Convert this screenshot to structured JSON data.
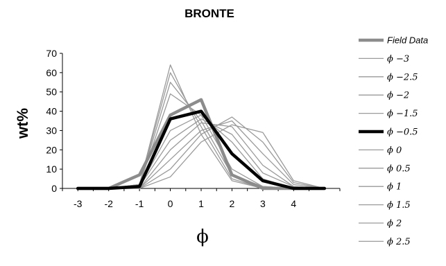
{
  "chart_data": {
    "type": "line",
    "title": "BRONTE",
    "xlabel": "ϕ",
    "ylabel": "wt%",
    "x": [
      -3,
      -2,
      -1,
      0,
      1,
      2,
      3,
      4,
      5
    ],
    "x_tick_labels": [
      "-3",
      "-2",
      "-1",
      "0",
      "1",
      "2",
      "3",
      "4"
    ],
    "y_tick_labels": [
      "0",
      "10",
      "20",
      "30",
      "40",
      "50",
      "60",
      "70"
    ],
    "ylim": [
      0,
      70
    ],
    "grid": false,
    "legend_position": "right",
    "series": [
      {
        "name": "Field Data",
        "color": "#8c8c8c",
        "style": "thick",
        "values": [
          0,
          0,
          7,
          38,
          46,
          7,
          0,
          0,
          0
        ]
      },
      {
        "name": "ϕ −3",
        "color": "#9a9a9a",
        "style": "thin",
        "values": [
          0,
          0,
          2,
          64,
          28,
          4,
          0,
          0,
          0
        ]
      },
      {
        "name": "ϕ −2.5",
        "color": "#9a9a9a",
        "style": "thin",
        "values": [
          0,
          0,
          2,
          60,
          32,
          5,
          0,
          0,
          0
        ]
      },
      {
        "name": "ϕ −2",
        "color": "#9a9a9a",
        "style": "thin",
        "values": [
          0,
          0,
          2,
          55,
          35,
          7,
          1,
          0,
          0
        ]
      },
      {
        "name": "ϕ −1.5",
        "color": "#9a9a9a",
        "style": "thin",
        "values": [
          0,
          0,
          2,
          49,
          38,
          10,
          1,
          0,
          0
        ]
      },
      {
        "name": "ϕ −0.5",
        "color": "#000000",
        "style": "bold",
        "values": [
          0,
          0,
          1,
          36,
          40,
          18,
          4,
          0,
          0
        ]
      },
      {
        "name": "ϕ 0",
        "color": "#9a9a9a",
        "style": "thin",
        "values": [
          0,
          0,
          1,
          30,
          38,
          24,
          5,
          0,
          0
        ]
      },
      {
        "name": "ϕ 0.5",
        "color": "#9a9a9a",
        "style": "thin",
        "values": [
          0,
          0,
          1,
          25,
          36,
          28,
          8,
          1,
          0
        ]
      },
      {
        "name": "ϕ 1",
        "color": "#9a9a9a",
        "style": "thin",
        "values": [
          0,
          0,
          0,
          20,
          34,
          32,
          12,
          1,
          0
        ]
      },
      {
        "name": "ϕ 1.5",
        "color": "#9a9a9a",
        "style": "thin",
        "values": [
          0,
          0,
          0,
          15,
          30,
          35,
          18,
          2,
          0
        ]
      },
      {
        "name": "ϕ 2",
        "color": "#9a9a9a",
        "style": "thin",
        "values": [
          0,
          0,
          0,
          10,
          28,
          37,
          24,
          3,
          0
        ]
      },
      {
        "name": "ϕ 2.5",
        "color": "#9a9a9a",
        "style": "thin",
        "values": [
          0,
          0,
          0,
          6,
          24,
          33,
          29,
          4,
          0
        ]
      }
    ]
  }
}
